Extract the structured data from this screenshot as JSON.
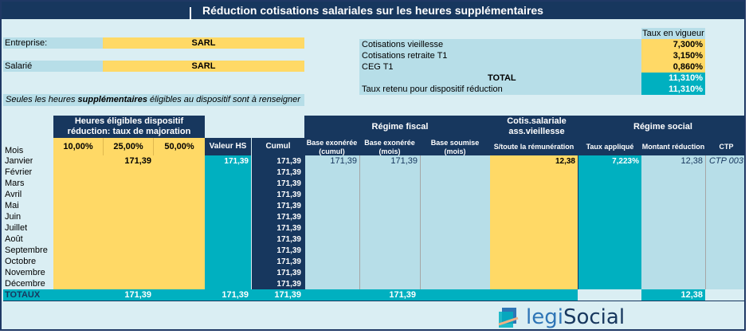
{
  "title": "Réduction cotisations salariales sur les heures supplémentaires",
  "company": {
    "label": "Entreprise:",
    "value": "SARL"
  },
  "employee": {
    "label": "Salarié",
    "value": "SARL"
  },
  "note": {
    "prefix": "Seules les heures",
    "emph": "supplémentaires",
    "suffix": "éligibles au dispositif sont à renseigner"
  },
  "rates": {
    "header": "Taux en vigueur",
    "rows": [
      {
        "label": "Cotisations vieillesse",
        "value": "7,300%"
      },
      {
        "label": "Cotisations retraite T1",
        "value": "3,150%"
      },
      {
        "label": "CEG T1",
        "value": "0,860%"
      }
    ],
    "total_label": "TOTAL",
    "total_value": "11,310%",
    "retained_label": "Taux retenu pour dispositif réduction",
    "retained_value": "11,310%"
  },
  "table": {
    "heures_header_1": "Heures éligibles dispositif",
    "heures_header_2": "réduction: taux de majoration",
    "majorations": [
      "10,00%",
      "25,00%",
      "50,00%"
    ],
    "mois_label": "Mois",
    "valeur_hs_label": "Valeur HS",
    "cumul_label": "Cumul",
    "regime_fiscal": "Régime fiscal",
    "base_exo_cumul_1": "Base exonérée",
    "base_exo_cumul_2": "(cumul)",
    "base_exo_mois_1": "Base exonérée",
    "base_exo_mois_2": "(mois)",
    "base_soumise_1": "Base soumise",
    "base_soumise_2": "(mois)",
    "cotis_1": "Cotis.salariale",
    "cotis_2": "ass.vieillesse",
    "cotis_3": "S/toute la rémunération",
    "regime_social": "Régime social",
    "taux_applique": "Taux appliqué",
    "montant_reduction": "Montant réduction",
    "ctp": "CTP",
    "months": [
      "Janvier",
      "Février",
      "Mars",
      "Avril",
      "Mai",
      "Juin",
      "Juillet",
      "Août",
      "Septembre",
      "Octobre",
      "Novembre",
      "Décembre"
    ],
    "cumul_values": [
      "171,39",
      "171,39",
      "171,39",
      "171,39",
      "171,39",
      "171,39",
      "171,39",
      "171,39",
      "171,39",
      "171,39",
      "171,39",
      "171,39"
    ],
    "jan": {
      "heures_25": "171,39",
      "valeur_hs": "171,39",
      "base_exo_cumul": "171,39",
      "base_exo_mois": "171,39",
      "cotis": "12,38",
      "taux": "7,223%",
      "montant": "12,38",
      "ctp": "CTP 003"
    },
    "totals": {
      "label": "TOTAUX",
      "heures": "171,39",
      "valeur_hs": "171,39",
      "cumul": "171,39",
      "fiscal": "171,39",
      "montant": "12,38"
    }
  },
  "logo": {
    "part1": "legi",
    "part2": "Social"
  },
  "colors": {
    "navy": "#17375e",
    "yellow": "#ffd966",
    "teal": "#00b0c0",
    "light": "#b7dee8",
    "bg": "#daeef3"
  }
}
